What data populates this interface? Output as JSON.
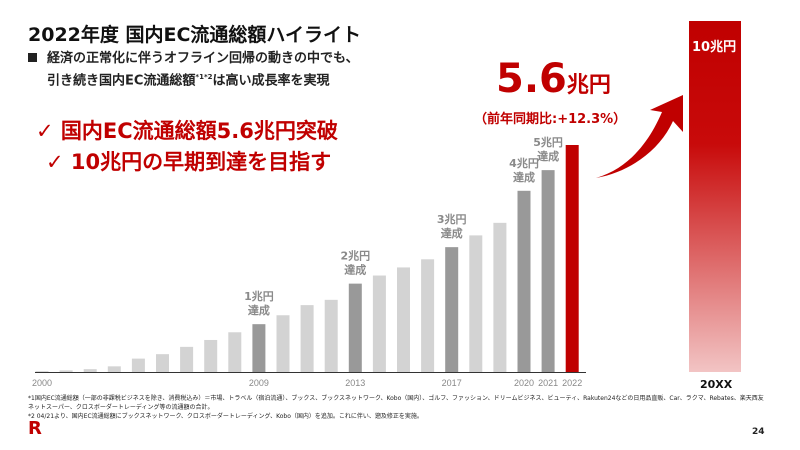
{
  "title": "2022年度 国内EC流通総額ハイライト",
  "bullet": {
    "line1": "経済の正常化に伴うオフライン回帰の動きの中でも、",
    "line2a": "引き続き国内EC流通総額",
    "sup": "*1*2",
    "line2b": "は高い成長率を実現"
  },
  "checks": [
    "✓ 国内EC流通総額5.6兆円突破",
    "✓ 10兆円の早期到達を目指す"
  ],
  "highlight": {
    "value": "5.6",
    "unit": "兆円",
    "yoy": "（前年同期比:+12.3%）"
  },
  "goal": {
    "label": "10兆円",
    "year": "20XX"
  },
  "footnotes": [
    "*1国内EC流通総額（一部の非課税ビジネスを除き、消費税込み）＝市場、トラベル（宿泊流通）、ブックス、ブックスネットワーク、Kobo（国内）、ゴルフ、ファッション、ドリームビジネス、ビューティ、Rakuten24などの日用品直販、Car、ラクマ、Rebates、楽天西友ネットスーパー、クロスボーダートレーディング等の流通額の合計。",
    "*2 04/21より、国内EC流通総額にブックスネットワーク、クロスボーダートレーディング、Kobo（国内）を追加。これに伴い、遡及修正を実施。"
  ],
  "logo": "R",
  "page_number": "24",
  "colors": {
    "accent": "#c00000",
    "milestone": "#999999",
    "bar": "#d3d3d3"
  },
  "chart_data": {
    "type": "bar",
    "categories": [
      "2000",
      "2001",
      "2002",
      "2003",
      "2004",
      "2005",
      "2006",
      "2007",
      "2008",
      "2009",
      "2010",
      "2011",
      "2012",
      "2013",
      "2014",
      "2015",
      "2016",
      "2017",
      "2018",
      "2019",
      "2020",
      "2021",
      "2022"
    ],
    "values": [
      0.02,
      0.04,
      0.07,
      0.14,
      0.33,
      0.44,
      0.62,
      0.79,
      0.98,
      1.18,
      1.4,
      1.65,
      1.78,
      2.18,
      2.38,
      2.58,
      2.78,
      3.08,
      3.37,
      3.68,
      4.47,
      4.98,
      5.6
    ],
    "unit": "兆円",
    "tick_labels": [
      "2000",
      "2009",
      "2013",
      "2017",
      "2020",
      "2021",
      "2022"
    ],
    "milestones": [
      {
        "year": "2009",
        "label1": "1兆円",
        "label2": "達成"
      },
      {
        "year": "2013",
        "label1": "2兆円",
        "label2": "達成"
      },
      {
        "year": "2017",
        "label1": "3兆円",
        "label2": "達成"
      },
      {
        "year": "2020",
        "label1": "4兆円",
        "label2": "達成"
      },
      {
        "year": "2021",
        "label1": "5兆円",
        "label2": "達成"
      }
    ],
    "highlight_year": "2022",
    "goal_value": 10,
    "ylim": [
      0,
      5.6
    ]
  }
}
